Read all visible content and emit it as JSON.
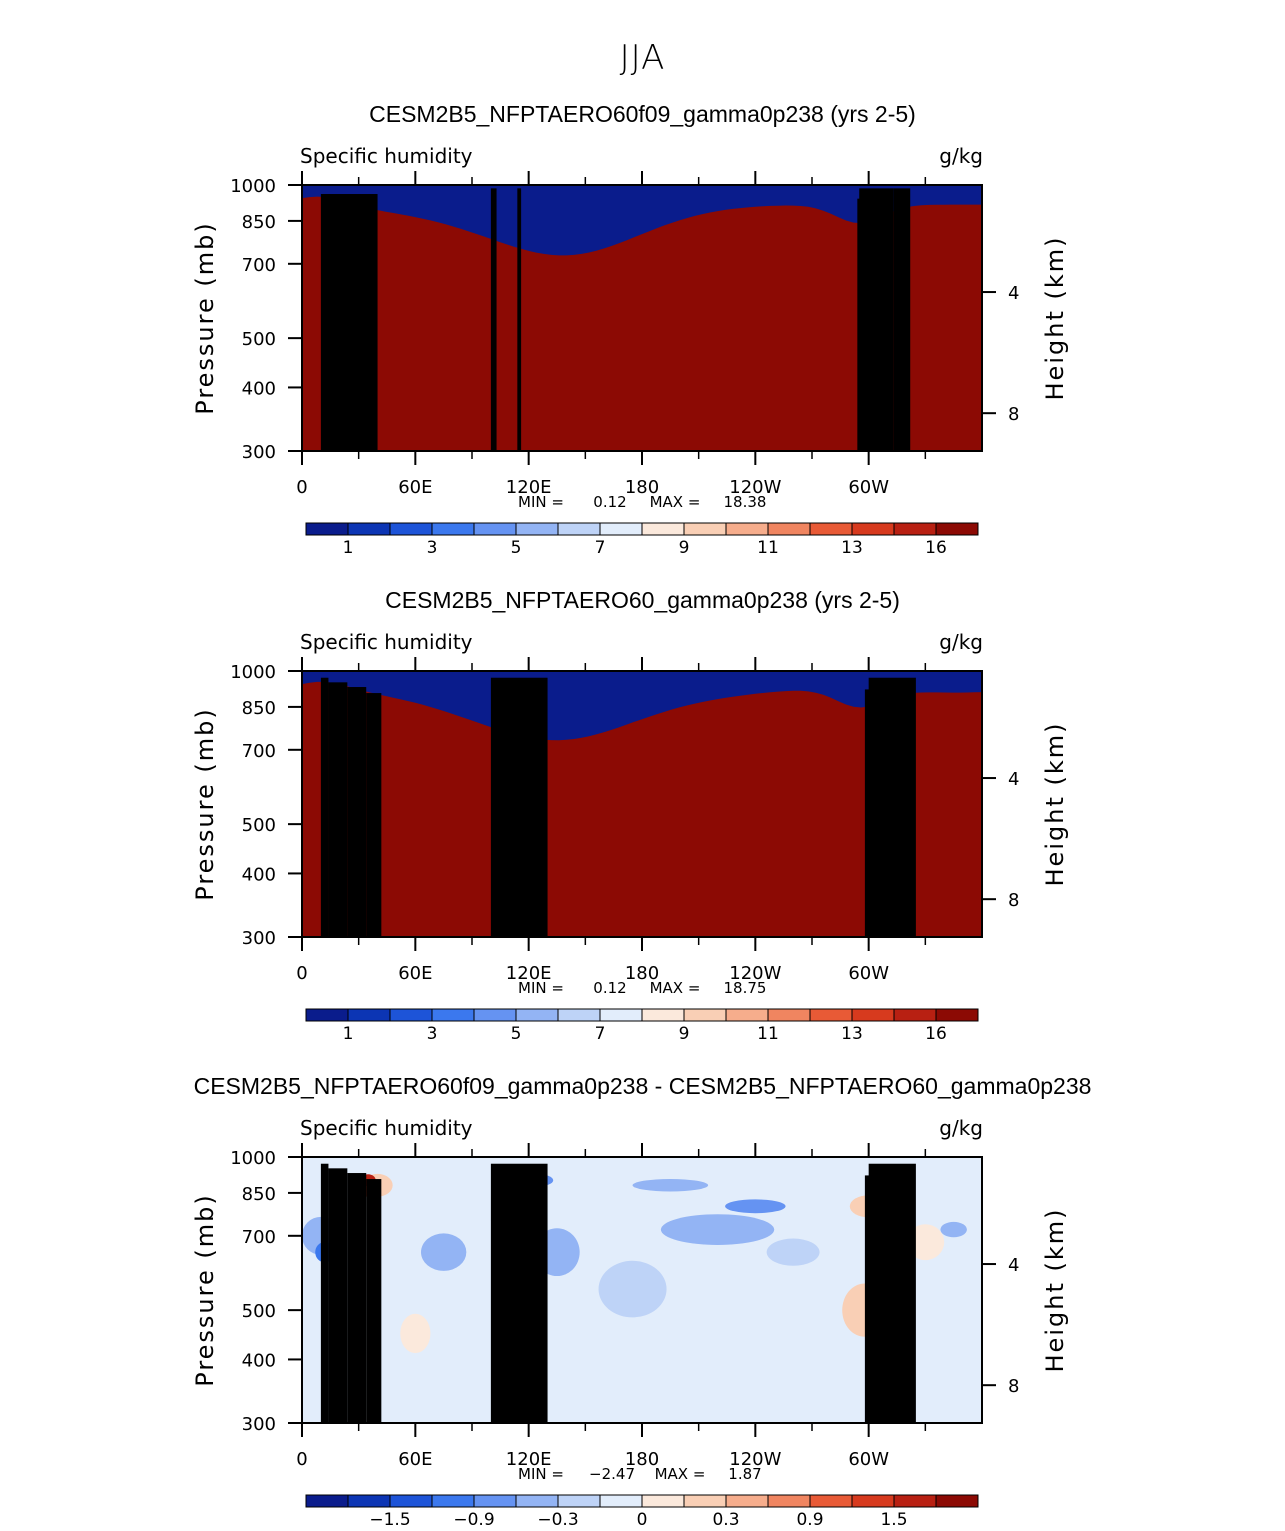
{
  "figure": {
    "suptitle": "JJA"
  },
  "chart_data": [
    {
      "type": "heatmap",
      "title": "CESM2B5_NFPTAERO60f09_gamma0p238 (yrs 2-5)",
      "left_label": "Specific humidity",
      "units": "g/kg",
      "xlabel": "",
      "ylabel": "Pressure (mb)",
      "y2label": "Height (km)",
      "xtick_labels": [
        "0",
        "60E",
        "120E",
        "180",
        "120W",
        "60W"
      ],
      "xlim": [
        0,
        360
      ],
      "ytick_labels": [
        "300",
        "400",
        "500",
        "700",
        "850",
        "1000"
      ],
      "ylim": [
        1000,
        300
      ],
      "y2tick_labels": [
        "8",
        "4"
      ],
      "stats_min_label": "MIN =",
      "stats_min": "0.12",
      "stats_max_label": "MAX =",
      "stats_max": "18.38",
      "colorbar_labels": [
        "1",
        "3",
        "5",
        "7",
        "9",
        "11",
        "13",
        "16"
      ],
      "colorbar_colors": [
        "#0a1c8c",
        "#0c35b4",
        "#1d54d8",
        "#3b78ee",
        "#6593f2",
        "#93b4f4",
        "#bed3f7",
        "#e2edfb",
        "#fbe9dc",
        "#f9cfb5",
        "#f6ad8c",
        "#f08560",
        "#e85a36",
        "#d73a1e",
        "#b82012",
        "#8c0a04"
      ]
    },
    {
      "type": "heatmap",
      "title": "CESM2B5_NFPTAERO60_gamma0p238 (yrs 2-5)",
      "left_label": "Specific humidity",
      "units": "g/kg",
      "xlabel": "",
      "ylabel": "Pressure (mb)",
      "y2label": "Height (km)",
      "xtick_labels": [
        "0",
        "60E",
        "120E",
        "180",
        "120W",
        "60W"
      ],
      "xlim": [
        0,
        360
      ],
      "ytick_labels": [
        "300",
        "400",
        "500",
        "700",
        "850",
        "1000"
      ],
      "ylim": [
        1000,
        300
      ],
      "y2tick_labels": [
        "8",
        "4"
      ],
      "stats_min_label": "MIN =",
      "stats_min": "0.12",
      "stats_max_label": "MAX =",
      "stats_max": "18.75",
      "colorbar_labels": [
        "1",
        "3",
        "5",
        "7",
        "9",
        "11",
        "13",
        "16"
      ],
      "colorbar_colors": [
        "#0a1c8c",
        "#0c35b4",
        "#1d54d8",
        "#3b78ee",
        "#6593f2",
        "#93b4f4",
        "#bed3f7",
        "#e2edfb",
        "#fbe9dc",
        "#f9cfb5",
        "#f6ad8c",
        "#f08560",
        "#e85a36",
        "#d73a1e",
        "#b82012",
        "#8c0a04"
      ]
    },
    {
      "type": "heatmap",
      "title": "CESM2B5_NFPTAERO60f09_gamma0p238 - CESM2B5_NFPTAERO60_gamma0p238",
      "left_label": "Specific humidity",
      "units": "g/kg",
      "xlabel": "",
      "ylabel": "Pressure (mb)",
      "y2label": "Height (km)",
      "xtick_labels": [
        "0",
        "60E",
        "120E",
        "180",
        "120W",
        "60W"
      ],
      "xlim": [
        0,
        360
      ],
      "ytick_labels": [
        "300",
        "400",
        "500",
        "700",
        "850",
        "1000"
      ],
      "ylim": [
        1000,
        300
      ],
      "y2tick_labels": [
        "8",
        "4"
      ],
      "stats_min_label": "MIN =",
      "stats_min": "−2.47",
      "stats_max_label": "MAX =",
      "stats_max": "1.87",
      "colorbar_labels": [
        "−1.5",
        "−0.9",
        "−0.3",
        "0",
        "0.3",
        "0.9",
        "1.5"
      ],
      "colorbar_colors": [
        "#0a1c8c",
        "#0c35b4",
        "#1d54d8",
        "#3b78ee",
        "#6593f2",
        "#93b4f4",
        "#bed3f7",
        "#e2edfb",
        "#fbe9dc",
        "#f9cfb5",
        "#f6ad8c",
        "#f08560",
        "#e85a36",
        "#d73a1e",
        "#b82012",
        "#8c0a04"
      ]
    }
  ]
}
